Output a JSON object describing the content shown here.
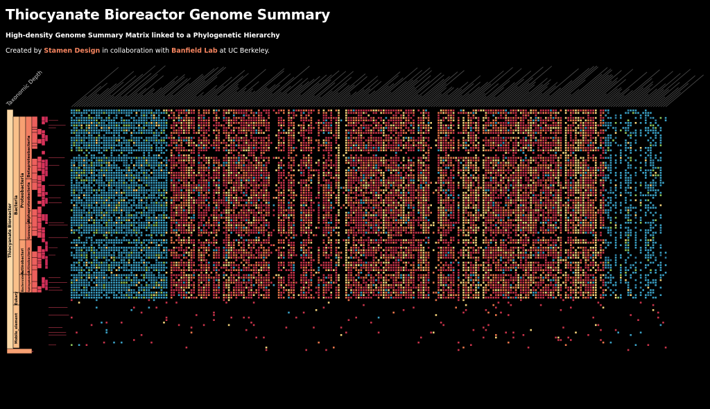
{
  "page": {
    "title": "Thiocyanate Bioreactor Genome Summary",
    "subtitle": "High-density Genome Summary Matrix linked to a Phylogenetic Hierarchy",
    "credits": {
      "prefix": "Created by ",
      "org1": "Stamen Design",
      "middle": " in collaboration with ",
      "org2": "Banfield Lab",
      "suffix": " at UC Berkeley."
    },
    "axis_label": "Taxonomic Depth"
  },
  "tree": {
    "root": "Thiocyanate Bioreactor",
    "level1": [
      "Bacteria",
      "Eukary",
      "Mobile_element"
    ],
    "level2": [
      "Proteobacteria",
      "Actinobacteri",
      "Bacteroidetes"
    ],
    "level3": [
      "Betaproteobacteria",
      "Alphaproteobacteria",
      "Gammaprote",
      "Actinobacteria",
      "Sphingobacteri"
    ]
  },
  "colors": {
    "background": "#000000",
    "accent": "#f4845f",
    "tree_root": "#fbd9a8",
    "tree_level1": "#f9c08a",
    "tree_level2": "#f7a072",
    "tree_level3": "#f27f62",
    "tree_level4": "#ec5f5c",
    "matrix_blue": "#3a9fc4",
    "matrix_red": "#c8334a",
    "matrix_orange": "#e8754a",
    "matrix_yellow": "#f3d27a",
    "matrix_green": "#8cc25a"
  }
}
